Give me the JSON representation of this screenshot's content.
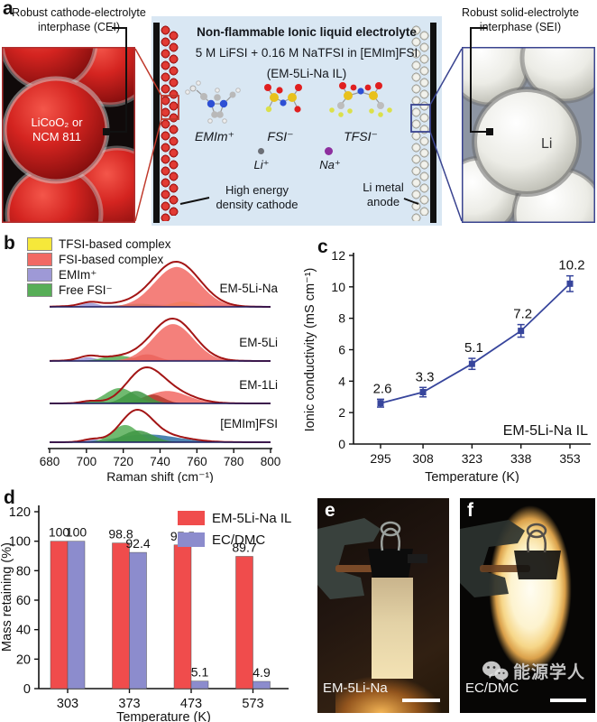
{
  "panel_a": {
    "label": "a",
    "cei_callout": [
      "Robust cathode-electrolyte",
      "interphase (CEI)"
    ],
    "sei_callout": [
      "Robust solid-electrolyte",
      "interphase (SEI)"
    ],
    "electrolyte": {
      "title": "Non-flammable Ionic liquid electrolyte",
      "composition": "5 M LiFSI + 0.16 M NaTFSI in [EMIm]FSI",
      "shorthand": "(EM-5Li-Na IL)",
      "bg_color": "#d9e7f3"
    },
    "cathode_particle_label": [
      "LiCoO₂ or",
      "NCM 811"
    ],
    "anode_particle_label": "Li",
    "molecule_labels": [
      "EMIm⁺",
      "FSI⁻",
      "TFSI⁻"
    ],
    "ion_labels": [
      "Li⁺",
      "Na⁺"
    ],
    "cathode_label": [
      "High energy",
      "density cathode"
    ],
    "anode_label": [
      "Li metal",
      "anode"
    ]
  },
  "chart_data": [
    {
      "panel": "b",
      "type": "area",
      "label": "b",
      "xlabel": "Raman shift (cm⁻¹)",
      "xlim": [
        680,
        800
      ],
      "xticks": [
        "680",
        "700",
        "720",
        "740",
        "760",
        "780",
        "800"
      ],
      "legend": [
        {
          "label": "TFSI-based complex",
          "color": "#f6e83a"
        },
        {
          "label": "FSI-based complex",
          "color": "#f26a64"
        },
        {
          "label": "EMIm⁺",
          "color": "#9e99d6"
        },
        {
          "label": "Free FSI⁻",
          "color": "#57ae57"
        }
      ],
      "envelope_color": "#a31515",
      "baseline_color": "#1a1a5e",
      "spectra": [
        {
          "name": "EM-5Li-Na",
          "envelope": [
            [
              749,
              12.5,
              1.0
            ],
            [
              720,
              18,
              0.07
            ],
            [
              702,
              5,
              0.07
            ]
          ],
          "fills": [
            [
              748,
              38,
              0.05,
              "#9e99d6"
            ],
            [
              702,
              4.5,
              0.09,
              "#9e99d6"
            ],
            [
              729,
              9,
              0.07,
              "#57ae57"
            ],
            [
              753,
              7,
              0.12,
              "#f6e83a"
            ],
            [
              749,
              12,
              0.9,
              "#f26a64"
            ]
          ]
        },
        {
          "name": "EM-5Li",
          "envelope": [
            [
              747,
              11.5,
              1.0
            ],
            [
              718,
              14,
              0.1
            ],
            [
              701,
              5,
              0.08
            ]
          ],
          "fills": [
            [
              750,
              38,
              0.04,
              "#9e99d6"
            ],
            [
              701,
              4.5,
              0.09,
              "#9e99d6"
            ],
            [
              717,
              8,
              0.13,
              "#57ae57"
            ],
            [
              733,
              6,
              0.16,
              "#c44536"
            ],
            [
              747,
              11,
              0.88,
              "#f26a64"
            ]
          ]
        },
        {
          "name": "EM-1Li",
          "envelope": [
            [
              731,
              9.5,
              1.0
            ],
            [
              745,
              12,
              0.4
            ],
            [
              702,
              5,
              0.08
            ]
          ],
          "fills": [
            [
              703,
              6,
              0.1,
              "#5b7fc4"
            ],
            [
              744,
              11,
              0.42,
              "#f26a64"
            ],
            [
              736,
              6,
              0.3,
              "#b03a2e"
            ],
            [
              718,
              8,
              0.52,
              "#57ae57"
            ],
            [
              727,
              6.5,
              0.42,
              "#3f9644"
            ]
          ]
        },
        {
          "name": "[EMIm]FSI",
          "envelope": [
            [
              727,
              8.5,
              1.0
            ],
            [
              740,
              14,
              0.25
            ],
            [
              703,
              5,
              0.1
            ]
          ],
          "fills": [
            [
              702,
              5,
              0.12,
              "#9e99d6"
            ],
            [
              733,
              16,
              0.28,
              "#2f6ea5"
            ],
            [
              721,
              7,
              0.62,
              "#57ae57"
            ],
            [
              728,
              8,
              0.42,
              "#3f9644"
            ]
          ]
        }
      ]
    },
    {
      "panel": "c",
      "type": "line",
      "label": "c",
      "x": [
        295,
        308,
        323,
        338,
        353
      ],
      "y": [
        2.6,
        3.3,
        5.1,
        7.2,
        10.2
      ],
      "error": [
        0.25,
        0.3,
        0.35,
        0.4,
        0.5
      ],
      "point_labels": [
        "2.6",
        "3.3",
        "5.1",
        "7.2",
        "10.2"
      ],
      "xticks": [
        "295",
        "308",
        "323",
        "338",
        "353"
      ],
      "yticks": [
        "0",
        "2",
        "4",
        "6",
        "8",
        "10",
        "12"
      ],
      "ylim": [
        0,
        12
      ],
      "xlabel": "Temperature (K)",
      "ylabel": "Ionic conductivity (mS cm⁻¹)",
      "annotation": "EM-5Li-Na IL",
      "color": "#37459c"
    },
    {
      "panel": "d",
      "type": "bar",
      "label": "d",
      "categories": [
        "303",
        "373",
        "473",
        "573"
      ],
      "series": [
        {
          "name": "EM-5Li-Na IL",
          "color": "#f04c4c",
          "values": [
            100,
            98.8,
            97.5,
            89.7
          ],
          "value_labels": [
            "100",
            "98.8",
            "97.5",
            "89.7"
          ]
        },
        {
          "name": "EC/DMC",
          "color": "#8c8ccd",
          "values": [
            100,
            92.4,
            5.1,
            4.9
          ],
          "value_labels": [
            "100",
            "92.4",
            "5.1",
            "4.9"
          ]
        }
      ],
      "ylim": [
        0,
        130
      ],
      "yticks": [
        "0",
        "20",
        "40",
        "60",
        "80",
        "100",
        "120"
      ],
      "xlabel": "Temperature (K)",
      "ylabel": "Mass retaining (%)"
    }
  ],
  "panel_e": {
    "label": "e",
    "caption": "EM-5Li-Na"
  },
  "panel_f": {
    "label": "f",
    "caption": "EC/DMC",
    "watermark_text": "能源学人"
  }
}
